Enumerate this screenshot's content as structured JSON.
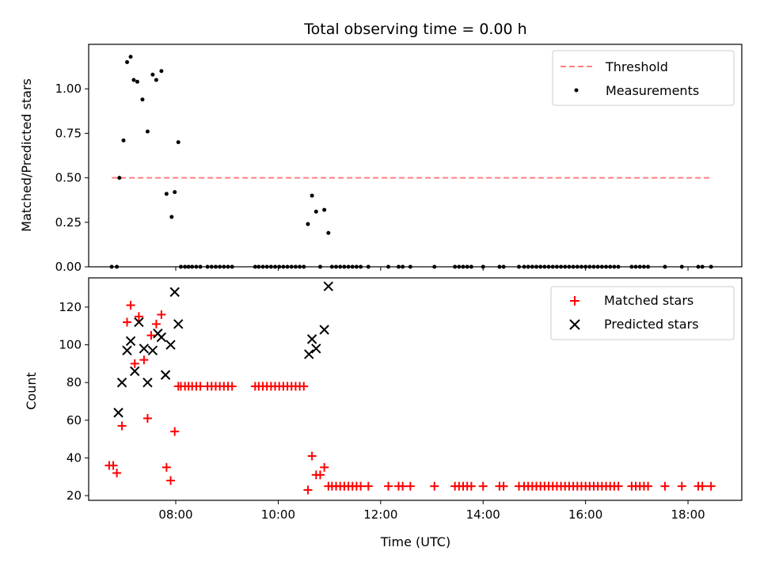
{
  "chart_data": [
    {
      "type": "scatter",
      "title": "Total observing time = 0.00 h",
      "xlabel": "",
      "ylabel": "Matched/Predicted stars",
      "xlim": [
        6.3,
        19.05
      ],
      "ylim": [
        0.0,
        1.25
      ],
      "yticks": [
        0.0,
        0.25,
        0.5,
        0.75,
        1.0
      ],
      "yticklabels": [
        "0.00",
        "0.25",
        "0.50",
        "0.75",
        "1.00"
      ],
      "xticks": [
        8,
        10,
        12,
        14,
        16,
        18
      ],
      "legend": {
        "position": "upper right",
        "entries": [
          "Threshold",
          "Measurements"
        ]
      },
      "threshold": {
        "name": "Threshold",
        "y": 0.5,
        "x_start": 6.75,
        "x_end": 18.45,
        "color": "#ff7f7f",
        "style": "dashed"
      },
      "series": [
        {
          "name": "Measurements",
          "color": "#000000",
          "marker": "dot",
          "points": [
            [
              6.75,
              0.0
            ],
            [
              6.85,
              0.0
            ],
            [
              6.9,
              0.5
            ],
            [
              6.98,
              0.71
            ],
            [
              7.05,
              1.15
            ],
            [
              7.12,
              1.18
            ],
            [
              7.18,
              1.05
            ],
            [
              7.25,
              1.04
            ],
            [
              7.35,
              0.94
            ],
            [
              7.45,
              0.76
            ],
            [
              7.55,
              1.08
            ],
            [
              7.62,
              1.05
            ],
            [
              7.72,
              1.1
            ],
            [
              7.82,
              0.41
            ],
            [
              7.92,
              0.28
            ],
            [
              7.98,
              0.42
            ],
            [
              8.05,
              0.7
            ],
            [
              8.1,
              0.0
            ],
            [
              8.18,
              0.0
            ],
            [
              8.25,
              0.0
            ],
            [
              8.32,
              0.0
            ],
            [
              8.4,
              0.0
            ],
            [
              8.48,
              0.0
            ],
            [
              8.62,
              0.0
            ],
            [
              8.7,
              0.0
            ],
            [
              8.78,
              0.0
            ],
            [
              8.86,
              0.0
            ],
            [
              8.94,
              0.0
            ],
            [
              9.02,
              0.0
            ],
            [
              9.1,
              0.0
            ],
            [
              9.55,
              0.0
            ],
            [
              9.62,
              0.0
            ],
            [
              9.7,
              0.0
            ],
            [
              9.78,
              0.0
            ],
            [
              9.86,
              0.0
            ],
            [
              9.94,
              0.0
            ],
            [
              10.02,
              0.0
            ],
            [
              10.1,
              0.0
            ],
            [
              10.18,
              0.0
            ],
            [
              10.26,
              0.0
            ],
            [
              10.34,
              0.0
            ],
            [
              10.42,
              0.0
            ],
            [
              10.5,
              0.0
            ],
            [
              10.58,
              0.24
            ],
            [
              10.66,
              0.4
            ],
            [
              10.74,
              0.31
            ],
            [
              10.82,
              0.0
            ],
            [
              10.9,
              0.32
            ],
            [
              10.98,
              0.19
            ],
            [
              11.05,
              0.0
            ],
            [
              11.13,
              0.0
            ],
            [
              11.21,
              0.0
            ],
            [
              11.29,
              0.0
            ],
            [
              11.37,
              0.0
            ],
            [
              11.45,
              0.0
            ],
            [
              11.53,
              0.0
            ],
            [
              11.61,
              0.0
            ],
            [
              11.76,
              0.0
            ],
            [
              12.15,
              0.0
            ],
            [
              12.35,
              0.0
            ],
            [
              12.43,
              0.0
            ],
            [
              12.58,
              0.0
            ],
            [
              13.05,
              0.0
            ],
            [
              13.45,
              0.0
            ],
            [
              13.53,
              0.0
            ],
            [
              13.61,
              0.0
            ],
            [
              13.69,
              0.0
            ],
            [
              13.77,
              0.0
            ],
            [
              14.0,
              0.0
            ],
            [
              14.32,
              0.0
            ],
            [
              14.4,
              0.0
            ],
            [
              14.7,
              0.0
            ],
            [
              14.8,
              0.0
            ],
            [
              14.88,
              0.0
            ],
            [
              14.96,
              0.0
            ],
            [
              15.04,
              0.0
            ],
            [
              15.12,
              0.0
            ],
            [
              15.2,
              0.0
            ],
            [
              15.28,
              0.0
            ],
            [
              15.36,
              0.0
            ],
            [
              15.44,
              0.0
            ],
            [
              15.52,
              0.0
            ],
            [
              15.6,
              0.0
            ],
            [
              15.68,
              0.0
            ],
            [
              15.76,
              0.0
            ],
            [
              15.84,
              0.0
            ],
            [
              15.92,
              0.0
            ],
            [
              16.0,
              0.0
            ],
            [
              16.08,
              0.0
            ],
            [
              16.16,
              0.0
            ],
            [
              16.24,
              0.0
            ],
            [
              16.32,
              0.0
            ],
            [
              16.4,
              0.0
            ],
            [
              16.48,
              0.0
            ],
            [
              16.56,
              0.0
            ],
            [
              16.64,
              0.0
            ],
            [
              16.9,
              0.0
            ],
            [
              16.98,
              0.0
            ],
            [
              17.06,
              0.0
            ],
            [
              17.14,
              0.0
            ],
            [
              17.22,
              0.0
            ],
            [
              17.55,
              0.0
            ],
            [
              17.88,
              0.0
            ],
            [
              18.2,
              0.0
            ],
            [
              18.28,
              0.0
            ],
            [
              18.45,
              0.0
            ]
          ]
        }
      ]
    },
    {
      "type": "scatter",
      "title": "",
      "xlabel": "Time (UTC)",
      "ylabel": "Count",
      "xlim": [
        6.3,
        19.05
      ],
      "ylim": [
        17.5,
        135.5
      ],
      "yticks": [
        20,
        40,
        60,
        80,
        100,
        120
      ],
      "xticks": [
        8,
        10,
        12,
        14,
        16,
        18
      ],
      "xticklabels": [
        "08:00",
        "10:00",
        "12:00",
        "14:00",
        "16:00",
        "18:00"
      ],
      "legend": {
        "position": "upper right",
        "entries": [
          "Matched stars",
          "Predicted stars"
        ]
      },
      "series": [
        {
          "name": "Matched stars",
          "color": "#ff0000",
          "marker": "plus",
          "points": [
            [
              6.7,
              36
            ],
            [
              6.78,
              36
            ],
            [
              6.85,
              32
            ],
            [
              6.95,
              57
            ],
            [
              7.05,
              112
            ],
            [
              7.12,
              121
            ],
            [
              7.2,
              90
            ],
            [
              7.28,
              115
            ],
            [
              7.38,
              92
            ],
            [
              7.45,
              61
            ],
            [
              7.52,
              105
            ],
            [
              7.62,
              111
            ],
            [
              7.72,
              116
            ],
            [
              7.82,
              35
            ],
            [
              7.9,
              28
            ],
            [
              7.98,
              54
            ],
            [
              8.05,
              78
            ],
            [
              8.1,
              78
            ],
            [
              8.18,
              78
            ],
            [
              8.25,
              78
            ],
            [
              8.32,
              78
            ],
            [
              8.4,
              78
            ],
            [
              8.48,
              78
            ],
            [
              8.62,
              78
            ],
            [
              8.7,
              78
            ],
            [
              8.78,
              78
            ],
            [
              8.86,
              78
            ],
            [
              8.94,
              78
            ],
            [
              9.02,
              78
            ],
            [
              9.1,
              78
            ],
            [
              9.55,
              78
            ],
            [
              9.62,
              78
            ],
            [
              9.7,
              78
            ],
            [
              9.78,
              78
            ],
            [
              9.86,
              78
            ],
            [
              9.94,
              78
            ],
            [
              10.02,
              78
            ],
            [
              10.1,
              78
            ],
            [
              10.18,
              78
            ],
            [
              10.26,
              78
            ],
            [
              10.34,
              78
            ],
            [
              10.42,
              78
            ],
            [
              10.5,
              78
            ],
            [
              10.58,
              23
            ],
            [
              10.66,
              41
            ],
            [
              10.74,
              31
            ],
            [
              10.82,
              31
            ],
            [
              10.9,
              35
            ],
            [
              10.98,
              25
            ],
            [
              11.05,
              25
            ],
            [
              11.13,
              25
            ],
            [
              11.21,
              25
            ],
            [
              11.29,
              25
            ],
            [
              11.37,
              25
            ],
            [
              11.45,
              25
            ],
            [
              11.53,
              25
            ],
            [
              11.61,
              25
            ],
            [
              11.76,
              25
            ],
            [
              12.15,
              25
            ],
            [
              12.35,
              25
            ],
            [
              12.43,
              25
            ],
            [
              12.58,
              25
            ],
            [
              13.05,
              25
            ],
            [
              13.45,
              25
            ],
            [
              13.53,
              25
            ],
            [
              13.61,
              25
            ],
            [
              13.69,
              25
            ],
            [
              13.77,
              25
            ],
            [
              14.0,
              25
            ],
            [
              14.32,
              25
            ],
            [
              14.4,
              25
            ],
            [
              14.7,
              25
            ],
            [
              14.8,
              25
            ],
            [
              14.88,
              25
            ],
            [
              14.96,
              25
            ],
            [
              15.04,
              25
            ],
            [
              15.12,
              25
            ],
            [
              15.2,
              25
            ],
            [
              15.28,
              25
            ],
            [
              15.36,
              25
            ],
            [
              15.44,
              25
            ],
            [
              15.52,
              25
            ],
            [
              15.6,
              25
            ],
            [
              15.68,
              25
            ],
            [
              15.76,
              25
            ],
            [
              15.84,
              25
            ],
            [
              15.92,
              25
            ],
            [
              16.0,
              25
            ],
            [
              16.08,
              25
            ],
            [
              16.16,
              25
            ],
            [
              16.24,
              25
            ],
            [
              16.32,
              25
            ],
            [
              16.4,
              25
            ],
            [
              16.48,
              25
            ],
            [
              16.56,
              25
            ],
            [
              16.64,
              25
            ],
            [
              16.9,
              25
            ],
            [
              16.98,
              25
            ],
            [
              17.06,
              25
            ],
            [
              17.14,
              25
            ],
            [
              17.22,
              25
            ],
            [
              17.55,
              25
            ],
            [
              17.88,
              25
            ],
            [
              18.2,
              25
            ],
            [
              18.28,
              25
            ],
            [
              18.45,
              25
            ]
          ]
        },
        {
          "name": "Predicted stars",
          "color": "#000000",
          "marker": "x",
          "points": [
            [
              6.88,
              64
            ],
            [
              6.95,
              80
            ],
            [
              7.05,
              97
            ],
            [
              7.12,
              102
            ],
            [
              7.2,
              86
            ],
            [
              7.28,
              112
            ],
            [
              7.38,
              98
            ],
            [
              7.45,
              80
            ],
            [
              7.55,
              97
            ],
            [
              7.65,
              106
            ],
            [
              7.72,
              104
            ],
            [
              7.8,
              84
            ],
            [
              7.9,
              100
            ],
            [
              7.98,
              128
            ],
            [
              8.05,
              111
            ],
            [
              10.6,
              95
            ],
            [
              10.66,
              103
            ],
            [
              10.74,
              98
            ],
            [
              10.9,
              108
            ],
            [
              10.98,
              131
            ]
          ]
        }
      ]
    }
  ]
}
